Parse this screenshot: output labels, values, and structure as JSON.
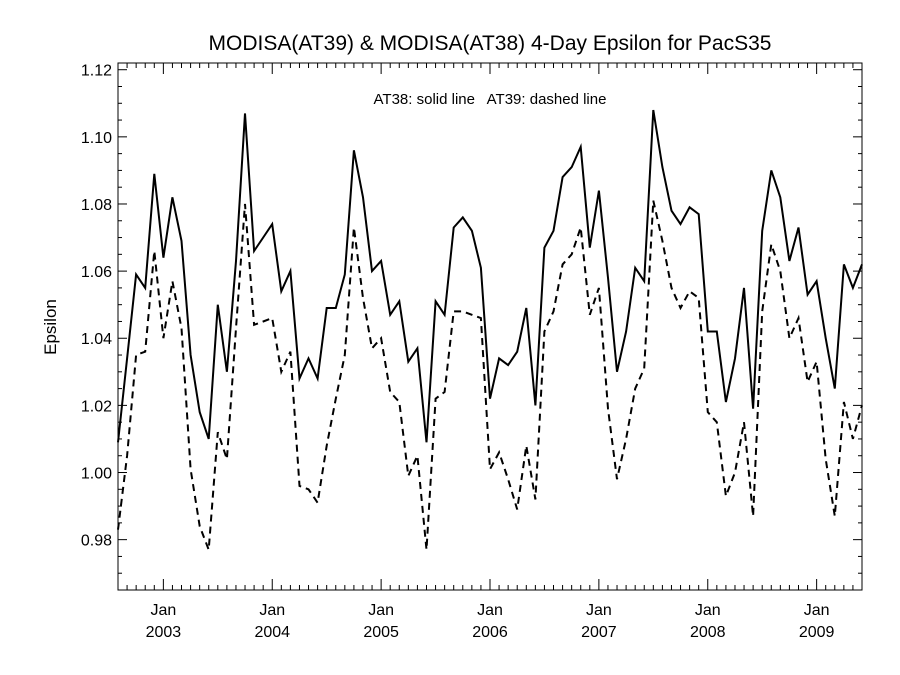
{
  "chart_data": {
    "type": "line",
    "title": "MODISA(AT39) & MODISA(AT38) 4-Day Epsilon for PacS35",
    "annotation": "AT38: solid line   AT39: dashed line",
    "ylabel": "Epsilon",
    "xlabel": "",
    "x_unit": "months since Aug 2002",
    "xlim": [
      0,
      82
    ],
    "ylim": [
      0.965,
      1.122
    ],
    "yticks": [
      0.98,
      1.0,
      1.02,
      1.04,
      1.06,
      1.08,
      1.1,
      1.12
    ],
    "ytick_labels": [
      "0.98",
      "1.00",
      "1.02",
      "1.04",
      "1.06",
      "1.08",
      "1.10",
      "1.12"
    ],
    "xticks": [
      {
        "x": 5,
        "month": "Jan",
        "year": "2003"
      },
      {
        "x": 17,
        "month": "Jan",
        "year": "2004"
      },
      {
        "x": 29,
        "month": "Jan",
        "year": "2005"
      },
      {
        "x": 41,
        "month": "Jan",
        "year": "2006"
      },
      {
        "x": 53,
        "month": "Jan",
        "year": "2007"
      },
      {
        "x": 65,
        "month": "Jan",
        "year": "2008"
      },
      {
        "x": 77,
        "month": "Jan",
        "year": "2009"
      }
    ],
    "series": [
      {
        "name": "AT38",
        "style": "solid",
        "x": [
          0,
          1,
          2,
          3,
          4,
          5,
          6,
          7,
          8,
          9,
          10,
          11,
          12,
          13,
          14,
          15,
          16,
          17,
          18,
          19,
          20,
          21,
          22,
          23,
          24,
          25,
          26,
          27,
          28,
          29,
          30,
          31,
          32,
          33,
          34,
          35,
          36,
          37,
          38,
          39,
          40,
          41,
          42,
          43,
          44,
          45,
          46,
          47,
          48,
          49,
          50,
          51,
          52,
          53,
          54,
          55,
          56,
          57,
          58,
          59,
          60,
          61,
          62,
          63,
          64,
          65,
          66,
          67,
          68,
          69,
          70,
          71,
          72,
          73,
          74,
          75,
          76,
          77,
          78,
          79,
          80,
          81,
          82
        ],
        "values": [
          1.009,
          1.034,
          1.059,
          1.055,
          1.089,
          1.064,
          1.082,
          1.069,
          1.035,
          1.018,
          1.01,
          1.05,
          1.03,
          1.063,
          1.107,
          1.066,
          1.07,
          1.074,
          1.054,
          1.06,
          1.028,
          1.034,
          1.028,
          1.049,
          1.049,
          1.059,
          1.096,
          1.082,
          1.06,
          1.063,
          1.047,
          1.051,
          1.033,
          1.037,
          1.009,
          1.051,
          1.047,
          1.073,
          1.076,
          1.072,
          1.061,
          1.022,
          1.034,
          1.032,
          1.036,
          1.049,
          1.02,
          1.067,
          1.072,
          1.088,
          1.091,
          1.097,
          1.067,
          1.084,
          1.058,
          1.03,
          1.042,
          1.061,
          1.057,
          1.108,
          1.091,
          1.078,
          1.074,
          1.079,
          1.077,
          1.042,
          1.042,
          1.021,
          1.034,
          1.055,
          1.019,
          1.072,
          1.09,
          1.082,
          1.063,
          1.073,
          1.053,
          1.057,
          1.04,
          1.025,
          1.062,
          1.055,
          1.062
        ]
      },
      {
        "name": "AT39",
        "style": "dashed",
        "x": [
          0,
          1,
          2,
          3,
          4,
          5,
          6,
          7,
          8,
          9,
          10,
          11,
          12,
          13,
          14,
          15,
          16,
          17,
          18,
          19,
          20,
          21,
          22,
          23,
          24,
          25,
          26,
          27,
          28,
          29,
          30,
          31,
          32,
          33,
          34,
          35,
          36,
          37,
          38,
          39,
          40,
          41,
          42,
          43,
          44,
          45,
          46,
          47,
          48,
          49,
          50,
          51,
          52,
          53,
          54,
          55,
          56,
          57,
          58,
          59,
          60,
          61,
          62,
          63,
          64,
          65,
          66,
          67,
          68,
          69,
          70,
          71,
          72,
          73,
          74,
          75,
          76,
          77,
          78,
          79,
          80,
          81,
          82
        ],
        "values": [
          0.983,
          1.005,
          1.035,
          1.036,
          1.066,
          1.04,
          1.057,
          1.043,
          1.001,
          0.984,
          0.977,
          1.012,
          1.004,
          1.043,
          1.08,
          1.044,
          1.045,
          1.046,
          1.03,
          1.036,
          0.996,
          0.995,
          0.991,
          1.008,
          1.022,
          1.035,
          1.073,
          1.052,
          1.037,
          1.04,
          1.024,
          1.021,
          0.999,
          1.005,
          0.977,
          1.022,
          1.024,
          1.048,
          1.048,
          1.047,
          1.046,
          1.001,
          1.006,
          0.998,
          0.989,
          1.008,
          0.992,
          1.042,
          1.048,
          1.062,
          1.065,
          1.073,
          1.047,
          1.055,
          1.019,
          0.998,
          1.01,
          1.025,
          1.031,
          1.081,
          1.069,
          1.055,
          1.049,
          1.054,
          1.052,
          1.018,
          1.015,
          0.993,
          1.0,
          1.015,
          0.987,
          1.048,
          1.068,
          1.06,
          1.04,
          1.046,
          1.027,
          1.033,
          1.004,
          0.987,
          1.021,
          1.01,
          1.02
        ]
      }
    ]
  }
}
